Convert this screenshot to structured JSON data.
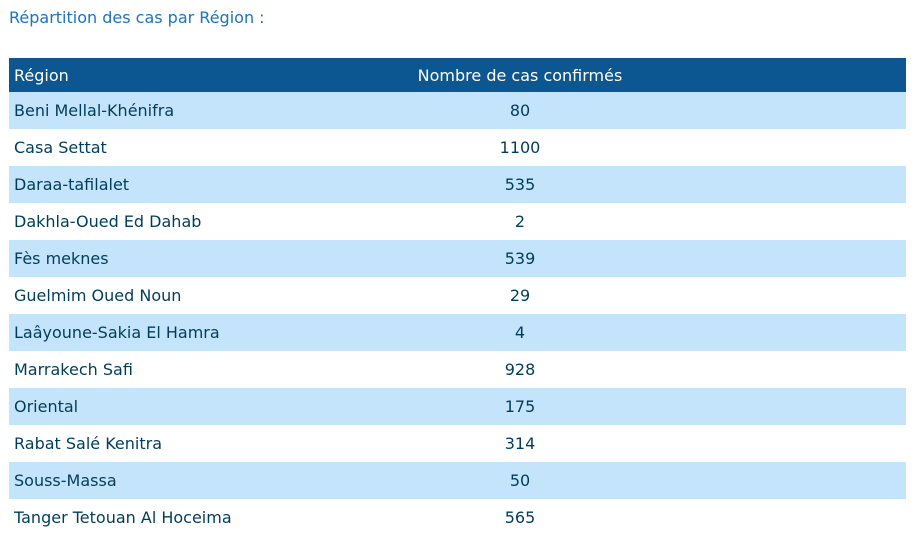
{
  "heading": "Répartition des cas par Région :",
  "table": {
    "columns": [
      "Région",
      "Nombre de cas confirmés"
    ],
    "rows": [
      {
        "region": "Beni Mellal-Khénifra",
        "count": "80"
      },
      {
        "region": "Casa Settat",
        "count": "1100"
      },
      {
        "region": "Daraa-tafilalet",
        "count": "535"
      },
      {
        "region": "Dakhla-Oued Ed Dahab",
        "count": "2"
      },
      {
        "region": "Fès meknes",
        "count": "539"
      },
      {
        "region": "Guelmim Oued Noun",
        "count": "29"
      },
      {
        "region": "Laâyoune-Sakia El Hamra",
        "count": "4"
      },
      {
        "region": "Marrakech Safi",
        "count": "928"
      },
      {
        "region": "Oriental",
        "count": "175"
      },
      {
        "region": "Rabat Salé Kenitra",
        "count": "314"
      },
      {
        "region": "Souss-Massa",
        "count": "50"
      },
      {
        "region": "Tanger Tetouan Al Hoceima",
        "count": "565"
      }
    ]
  },
  "colors": {
    "heading": "#1a73c4",
    "header_bg": "#0c5691",
    "row_odd_bg": "#c4e4fb",
    "row_even_bg": "#ffffff",
    "row_text": "#003d5c"
  }
}
